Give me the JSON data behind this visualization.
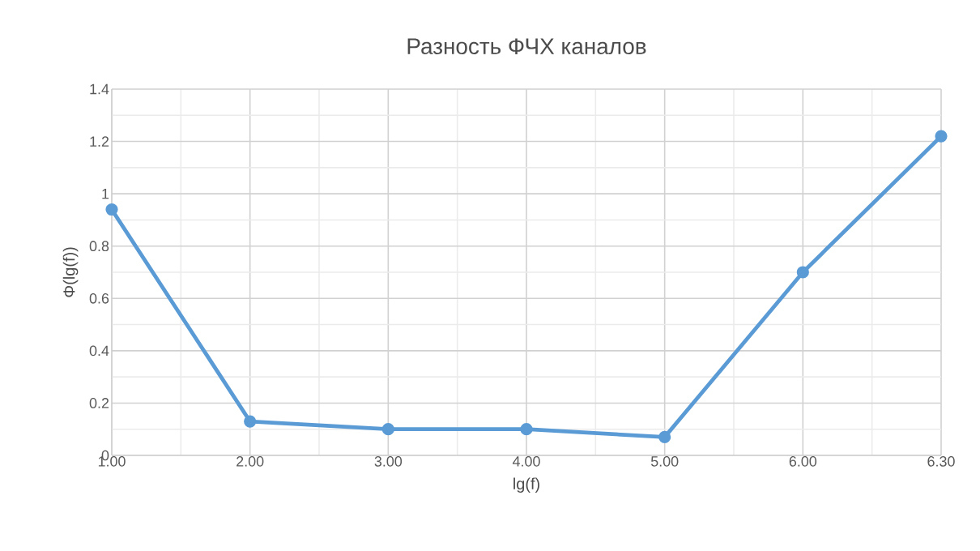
{
  "chart_data": {
    "type": "line",
    "title": "Разность ФЧХ каналов",
    "xlabel": "lg(f)",
    "ylabel": "Φ(lg(f))",
    "categories": [
      "1.00",
      "2.00",
      "3.00",
      "4.00",
      "5.00",
      "6.00",
      "6.30"
    ],
    "series": [
      {
        "color": "#5b9bd5",
        "values": [
          0.94,
          0.13,
          0.1,
          0.1,
          0.07,
          0.7,
          1.22
        ]
      }
    ],
    "ylim": [
      0,
      1.4
    ],
    "yticks": [
      0,
      0.2,
      0.4,
      0.6,
      0.8,
      1,
      1.2,
      1.4
    ],
    "grid": true,
    "marker": "circle",
    "line_style": "solid"
  }
}
